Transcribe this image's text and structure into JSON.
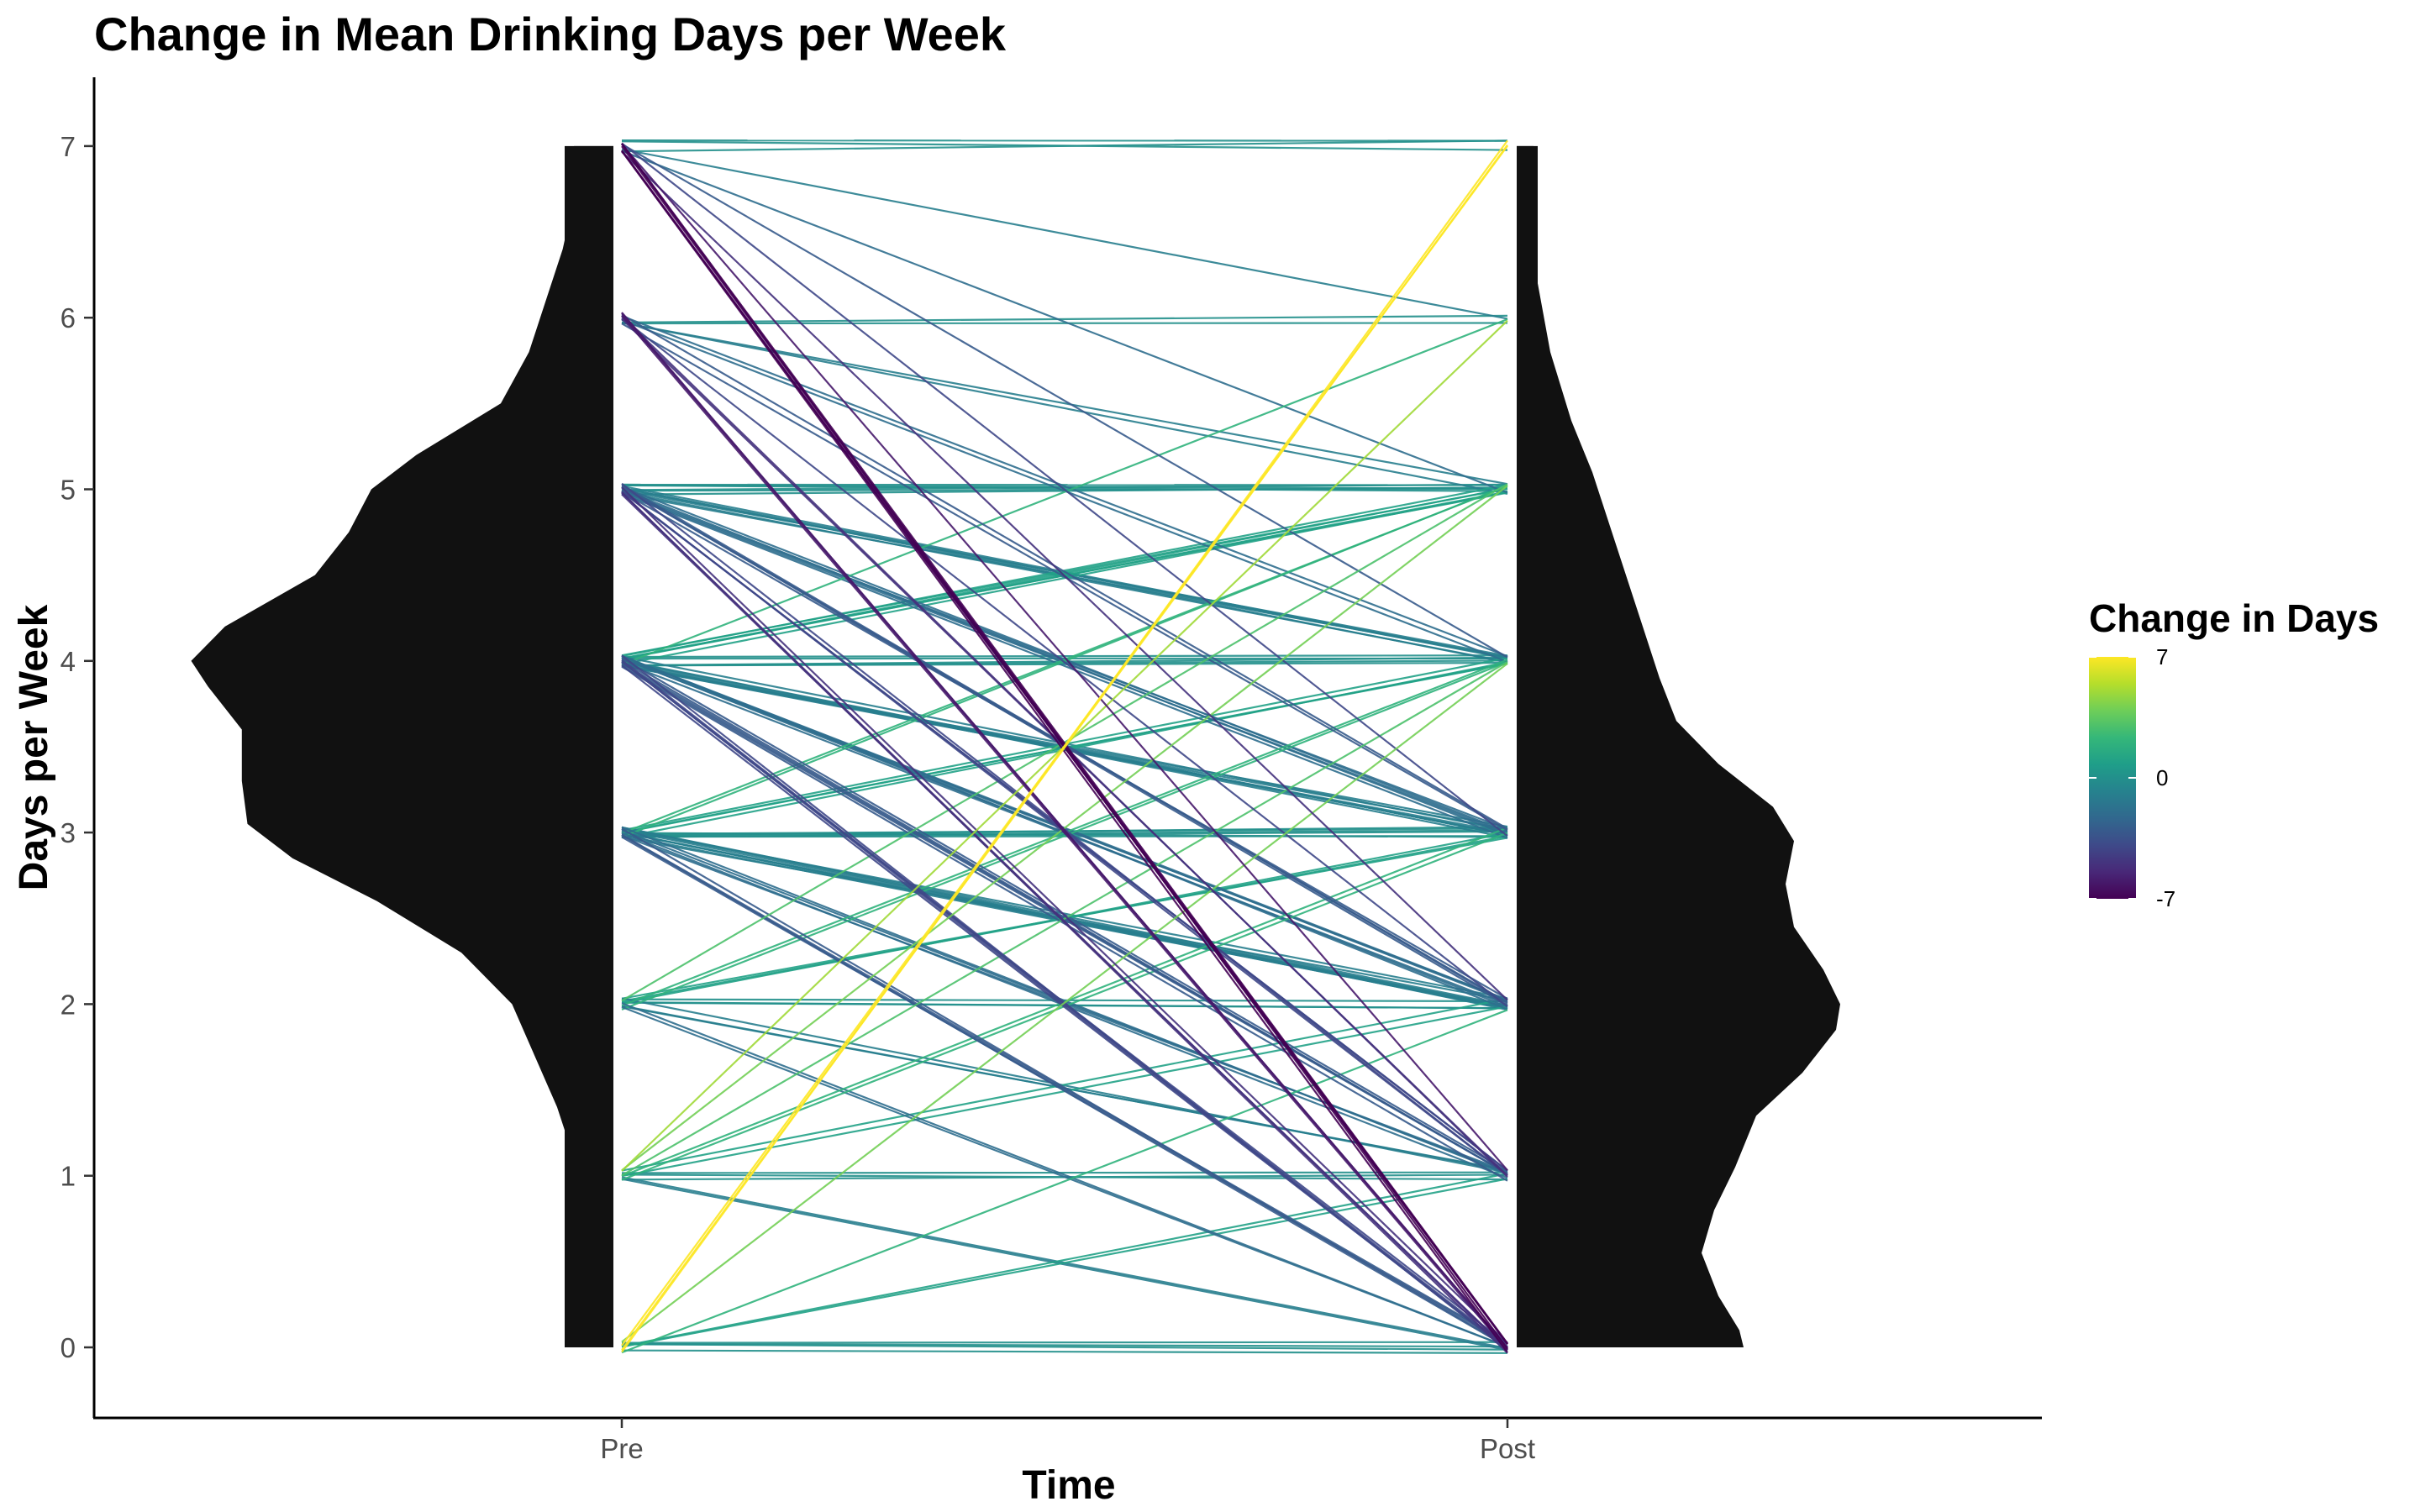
{
  "chart_data": {
    "type": "line",
    "subtype": "paired-slope chart with half-violin densities",
    "title": "Change in Mean Drinking Days per Week",
    "xlabel": "Time",
    "ylabel": "Days per Week",
    "categories": [
      "Pre",
      "Post"
    ],
    "y_ticks": [
      0,
      1,
      2,
      3,
      4,
      5,
      6,
      7
    ],
    "ylim": [
      -0.4,
      7.4
    ],
    "grid": false,
    "legend": {
      "title": "Change in Days",
      "position": "right",
      "scale": "viridis",
      "min": -7,
      "max": 7,
      "tick_labels": [
        "7",
        "0",
        "-7"
      ],
      "tick_values": [
        7,
        0,
        -7
      ]
    },
    "colors": {
      "density_fill": "#111111",
      "viridis": [
        "#440154",
        "#482878",
        "#3e4a89",
        "#31688e",
        "#26828e",
        "#1f9e89",
        "#35b779",
        "#6ece58",
        "#b5de2b",
        "#fde725"
      ]
    },
    "pre_density": [
      {
        "y": 0.0,
        "d": 0.06
      },
      {
        "y": 0.1,
        "d": 0.07
      },
      {
        "y": 0.3,
        "d": 0.07
      },
      {
        "y": 0.6,
        "d": 0.07
      },
      {
        "y": 1.0,
        "d": 0.06
      },
      {
        "y": 1.4,
        "d": 0.1
      },
      {
        "y": 1.7,
        "d": 0.14
      },
      {
        "y": 2.0,
        "d": 0.18
      },
      {
        "y": 2.3,
        "d": 0.27
      },
      {
        "y": 2.6,
        "d": 0.42
      },
      {
        "y": 2.85,
        "d": 0.57
      },
      {
        "y": 3.05,
        "d": 0.65
      },
      {
        "y": 3.3,
        "d": 0.66
      },
      {
        "y": 3.6,
        "d": 0.66
      },
      {
        "y": 3.85,
        "d": 0.72
      },
      {
        "y": 4.0,
        "d": 0.75
      },
      {
        "y": 4.2,
        "d": 0.69
      },
      {
        "y": 4.5,
        "d": 0.53
      },
      {
        "y": 4.75,
        "d": 0.47
      },
      {
        "y": 5.0,
        "d": 0.43
      },
      {
        "y": 5.2,
        "d": 0.35
      },
      {
        "y": 5.5,
        "d": 0.2
      },
      {
        "y": 5.8,
        "d": 0.15
      },
      {
        "y": 6.1,
        "d": 0.12
      },
      {
        "y": 6.4,
        "d": 0.09
      },
      {
        "y": 6.7,
        "d": 0.07
      },
      {
        "y": 7.0,
        "d": 0.07
      }
    ],
    "post_density": [
      {
        "y": 0.0,
        "d": 0.54
      },
      {
        "y": 0.1,
        "d": 0.53
      },
      {
        "y": 0.3,
        "d": 0.48
      },
      {
        "y": 0.55,
        "d": 0.44
      },
      {
        "y": 0.8,
        "d": 0.47
      },
      {
        "y": 1.05,
        "d": 0.52
      },
      {
        "y": 1.35,
        "d": 0.57
      },
      {
        "y": 1.6,
        "d": 0.68
      },
      {
        "y": 1.85,
        "d": 0.76
      },
      {
        "y": 2.0,
        "d": 0.77
      },
      {
        "y": 2.2,
        "d": 0.73
      },
      {
        "y": 2.45,
        "d": 0.66
      },
      {
        "y": 2.7,
        "d": 0.64
      },
      {
        "y": 2.95,
        "d": 0.66
      },
      {
        "y": 3.15,
        "d": 0.61
      },
      {
        "y": 3.4,
        "d": 0.48
      },
      {
        "y": 3.65,
        "d": 0.38
      },
      {
        "y": 3.9,
        "d": 0.34
      },
      {
        "y": 4.2,
        "d": 0.3
      },
      {
        "y": 4.5,
        "d": 0.26
      },
      {
        "y": 4.8,
        "d": 0.22
      },
      {
        "y": 5.1,
        "d": 0.18
      },
      {
        "y": 5.4,
        "d": 0.13
      },
      {
        "y": 5.8,
        "d": 0.08
      },
      {
        "y": 6.2,
        "d": 0.05
      },
      {
        "y": 6.6,
        "d": 0.04
      },
      {
        "y": 7.0,
        "d": 0.04
      }
    ],
    "series": [
      {
        "pre": 7,
        "post": 7,
        "n": 3
      },
      {
        "pre": 7,
        "post": 6,
        "n": 1
      },
      {
        "pre": 7,
        "post": 5,
        "n": 1
      },
      {
        "pre": 7,
        "post": 4,
        "n": 1
      },
      {
        "pre": 7,
        "post": 3,
        "n": 1
      },
      {
        "pre": 7,
        "post": 2,
        "n": 1
      },
      {
        "pre": 7,
        "post": 1,
        "n": 1
      },
      {
        "pre": 7,
        "post": 0,
        "n": 6
      },
      {
        "pre": 6,
        "post": 6,
        "n": 2
      },
      {
        "pre": 6,
        "post": 5,
        "n": 2
      },
      {
        "pre": 6,
        "post": 4,
        "n": 2
      },
      {
        "pre": 6,
        "post": 3,
        "n": 2
      },
      {
        "pre": 6,
        "post": 2,
        "n": 1
      },
      {
        "pre": 6,
        "post": 1,
        "n": 2
      },
      {
        "pre": 6,
        "post": 0,
        "n": 3
      },
      {
        "pre": 5,
        "post": 5,
        "n": 6
      },
      {
        "pre": 5,
        "post": 4,
        "n": 6
      },
      {
        "pre": 5,
        "post": 3,
        "n": 5
      },
      {
        "pre": 5,
        "post": 2,
        "n": 4
      },
      {
        "pre": 5,
        "post": 1,
        "n": 4
      },
      {
        "pre": 5,
        "post": 0,
        "n": 4
      },
      {
        "pre": 4,
        "post": 5,
        "n": 6
      },
      {
        "pre": 4,
        "post": 4,
        "n": 5
      },
      {
        "pre": 4,
        "post": 6,
        "n": 1
      },
      {
        "pre": 4,
        "post": 3,
        "n": 8
      },
      {
        "pre": 4,
        "post": 2,
        "n": 6
      },
      {
        "pre": 4,
        "post": 1,
        "n": 5
      },
      {
        "pre": 4,
        "post": 0,
        "n": 5
      },
      {
        "pre": 3,
        "post": 3,
        "n": 6
      },
      {
        "pre": 3,
        "post": 4,
        "n": 4
      },
      {
        "pre": 3,
        "post": 5,
        "n": 2
      },
      {
        "pre": 3,
        "post": 2,
        "n": 9
      },
      {
        "pre": 3,
        "post": 1,
        "n": 4
      },
      {
        "pre": 3,
        "post": 0,
        "n": 4
      },
      {
        "pre": 2,
        "post": 2,
        "n": 3
      },
      {
        "pre": 2,
        "post": 3,
        "n": 3
      },
      {
        "pre": 2,
        "post": 4,
        "n": 2
      },
      {
        "pre": 2,
        "post": 5,
        "n": 1
      },
      {
        "pre": 2,
        "post": 1,
        "n": 3
      },
      {
        "pre": 2,
        "post": 0,
        "n": 2
      },
      {
        "pre": 1,
        "post": 1,
        "n": 3
      },
      {
        "pre": 1,
        "post": 2,
        "n": 2
      },
      {
        "pre": 1,
        "post": 3,
        "n": 2
      },
      {
        "pre": 1,
        "post": 4,
        "n": 1
      },
      {
        "pre": 1,
        "post": 5,
        "n": 1
      },
      {
        "pre": 1,
        "post": 6,
        "n": 1
      },
      {
        "pre": 1,
        "post": 0,
        "n": 2
      },
      {
        "pre": 0,
        "post": 0,
        "n": 4
      },
      {
        "pre": 0,
        "post": 1,
        "n": 2
      },
      {
        "pre": 0,
        "post": 2,
        "n": 1
      },
      {
        "pre": 0,
        "post": 4,
        "n": 1
      },
      {
        "pre": 0,
        "post": 7,
        "n": 3
      }
    ]
  }
}
